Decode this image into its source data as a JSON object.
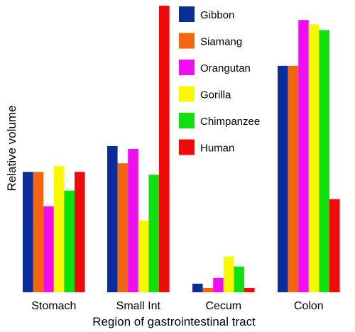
{
  "chart_data": {
    "type": "bar",
    "categories": [
      "Stomach",
      "Small Int",
      "Cecum",
      "Colon"
    ],
    "series": [
      {
        "name": "Gibbon",
        "values": [
          42,
          51,
          3,
          79
        ],
        "color": "#0a2d9a"
      },
      {
        "name": "Siamang",
        "values": [
          42,
          45,
          1.5,
          79
        ],
        "color": "#f5650f"
      },
      {
        "name": "Orangutan",
        "values": [
          30,
          50,
          5,
          95
        ],
        "color": "#f00ef0"
      },
      {
        "name": "Gorilla",
        "values": [
          44,
          25,
          12.5,
          93.5
        ],
        "color": "#f8f800"
      },
      {
        "name": "Chimpanzee",
        "values": [
          35.5,
          41,
          9,
          91.5
        ],
        "color": "#10e010"
      },
      {
        "name": "Human",
        "values": [
          42,
          100,
          1.5,
          32.5
        ],
        "color": "#f00a0a"
      }
    ],
    "xlabel": "Region of gastrointestinal tract",
    "ylabel": "Relative volume",
    "ylim": [
      0,
      100
    ],
    "legend": "top-center",
    "grid": false
  }
}
